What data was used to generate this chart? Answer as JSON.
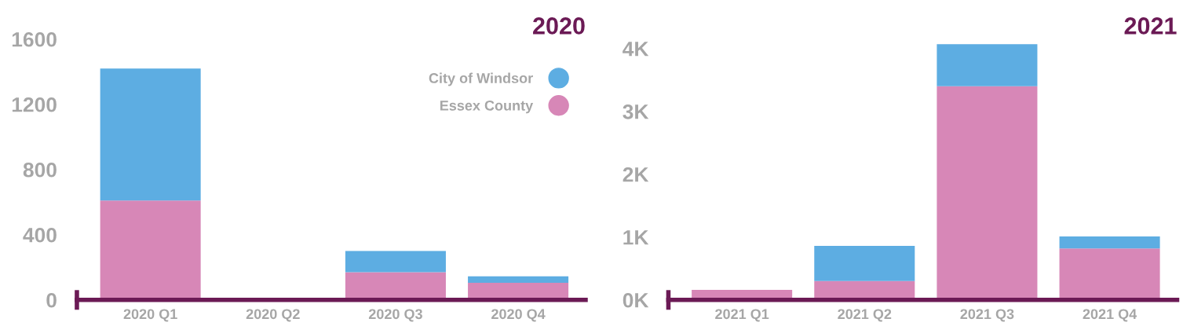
{
  "chart_data": [
    {
      "type": "bar",
      "title": "2020",
      "stacked": true,
      "categories": [
        "2020 Q1",
        "2020 Q2",
        "2020 Q3",
        "2020 Q4"
      ],
      "ylim": [
        0,
        1600
      ],
      "yticks": [
        0,
        400,
        800,
        1200,
        1600
      ],
      "grid": false,
      "legend": "top right",
      "series": [
        {
          "name": "Essex County",
          "color": "#d787b7",
          "values": [
            610,
            0,
            170,
            105
          ]
        },
        {
          "name": "City of Windsor",
          "color": "#5dade2",
          "values": [
            810,
            0,
            130,
            40
          ]
        }
      ]
    },
    {
      "type": "bar",
      "title": "2021",
      "stacked": true,
      "categories": [
        "2021 Q1",
        "2021 Q2",
        "2021 Q3",
        "2021 Q4"
      ],
      "ylim": [
        0,
        4150
      ],
      "yticks": [
        {
          "value": 0,
          "label": "0K"
        },
        {
          "value": 1000,
          "label": "1K"
        },
        {
          "value": 2000,
          "label": "2K"
        },
        {
          "value": 3000,
          "label": "3K"
        },
        {
          "value": 4000,
          "label": "4K"
        }
      ],
      "grid": false,
      "series": [
        {
          "color": "#d787b7",
          "values": [
            160,
            300,
            3400,
            820
          ]
        },
        {
          "color": "#5dade2",
          "values": [
            0,
            560,
            670,
            190
          ]
        }
      ]
    }
  ]
}
